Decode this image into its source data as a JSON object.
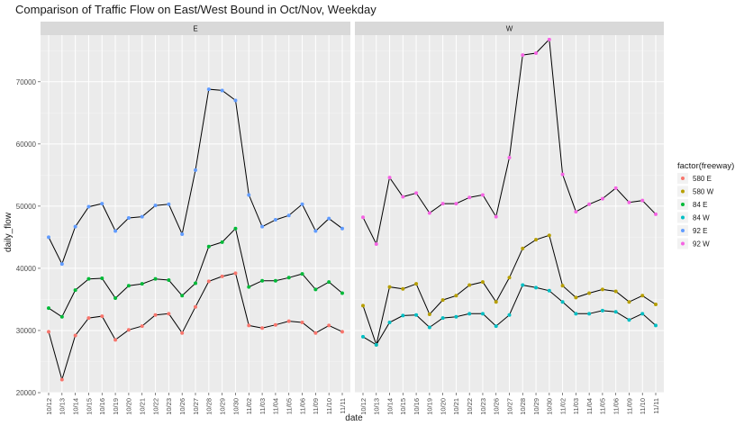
{
  "chart_data": {
    "type": "line",
    "title": "Comparison of Traffic Flow on East/West Bound in Oct/Nov, Weekday",
    "xlabel": "date",
    "ylabel": "daily_flow",
    "ylim": [
      20000,
      77500
    ],
    "yticks": [
      20000,
      30000,
      40000,
      50000,
      60000,
      70000
    ],
    "ytick_labels": [
      "20000",
      "30000",
      "40000",
      "50000",
      "60000",
      "70000"
    ],
    "grid": true,
    "categories": [
      "10/12",
      "10/13",
      "10/14",
      "10/15",
      "10/16",
      "10/19",
      "10/20",
      "10/21",
      "10/22",
      "10/23",
      "10/26",
      "10/27",
      "10/28",
      "10/29",
      "10/30",
      "11/02",
      "11/03",
      "11/04",
      "11/05",
      "11/06",
      "11/09",
      "11/10",
      "11/11"
    ],
    "facets": [
      {
        "label": "E",
        "series": [
          {
            "name": "580 E",
            "color": "#f8766d",
            "values": [
              29800,
              22100,
              29200,
              32000,
              32300,
              28500,
              30100,
              30700,
              32500,
              32700,
              29600,
              33800,
              37900,
              38700,
              39200,
              30800,
              30400,
              30900,
              31500,
              31300,
              29600,
              30800,
              29800
            ]
          },
          {
            "name": "84 E",
            "color": "#00ba38",
            "values": [
              33600,
              32200,
              36500,
              38300,
              38400,
              35200,
              37200,
              37500,
              38300,
              38100,
              35600,
              37600,
              43500,
              44200,
              46400,
              37000,
              38000,
              38000,
              38500,
              39100,
              36600,
              37800,
              36000
            ]
          },
          {
            "name": "92 E",
            "color": "#619cff",
            "values": [
              45000,
              40700,
              46700,
              49900,
              50400,
              46000,
              48100,
              48300,
              50100,
              50300,
              45500,
              55800,
              68800,
              68600,
              67000,
              51800,
              46700,
              47800,
              48500,
              50300,
              46000,
              48000,
              46400
            ]
          }
        ]
      },
      {
        "label": "W",
        "series": [
          {
            "name": "580 W",
            "color": "#b79f00",
            "values": [
              34000,
              27700,
              37000,
              36700,
              37500,
              32600,
              34900,
              35600,
              37300,
              37800,
              34600,
              38500,
              43200,
              44600,
              45300,
              37200,
              35300,
              36000,
              36600,
              36300,
              34600,
              35600,
              34200
            ]
          },
          {
            "name": "84 W",
            "color": "#00bfc4",
            "values": [
              29000,
              27700,
              31300,
              32400,
              32500,
              30500,
              32000,
              32200,
              32700,
              32700,
              30700,
              32500,
              37300,
              36900,
              36400,
              34600,
              32700,
              32700,
              33200,
              33000,
              31700,
              32700,
              30800
            ]
          },
          {
            "name": "92 W",
            "color": "#f564e3",
            "values": [
              48200,
              43900,
              54600,
              51500,
              52100,
              48900,
              50400,
              50400,
              51400,
              51800,
              48300,
              57800,
              74300,
              74600,
              76800,
              55100,
              49100,
              50300,
              51200,
              52900,
              50600,
              50900,
              48700
            ]
          }
        ]
      }
    ],
    "legend": {
      "title": "factor(freeway)",
      "placement": "right",
      "entries": [
        {
          "name": "580 E",
          "color": "#f8766d"
        },
        {
          "name": "580 W",
          "color": "#b79f00"
        },
        {
          "name": "84 E",
          "color": "#00ba38"
        },
        {
          "name": "84 W",
          "color": "#00bfc4"
        },
        {
          "name": "92 E",
          "color": "#619cff"
        },
        {
          "name": "92 W",
          "color": "#f564e3"
        }
      ]
    }
  }
}
